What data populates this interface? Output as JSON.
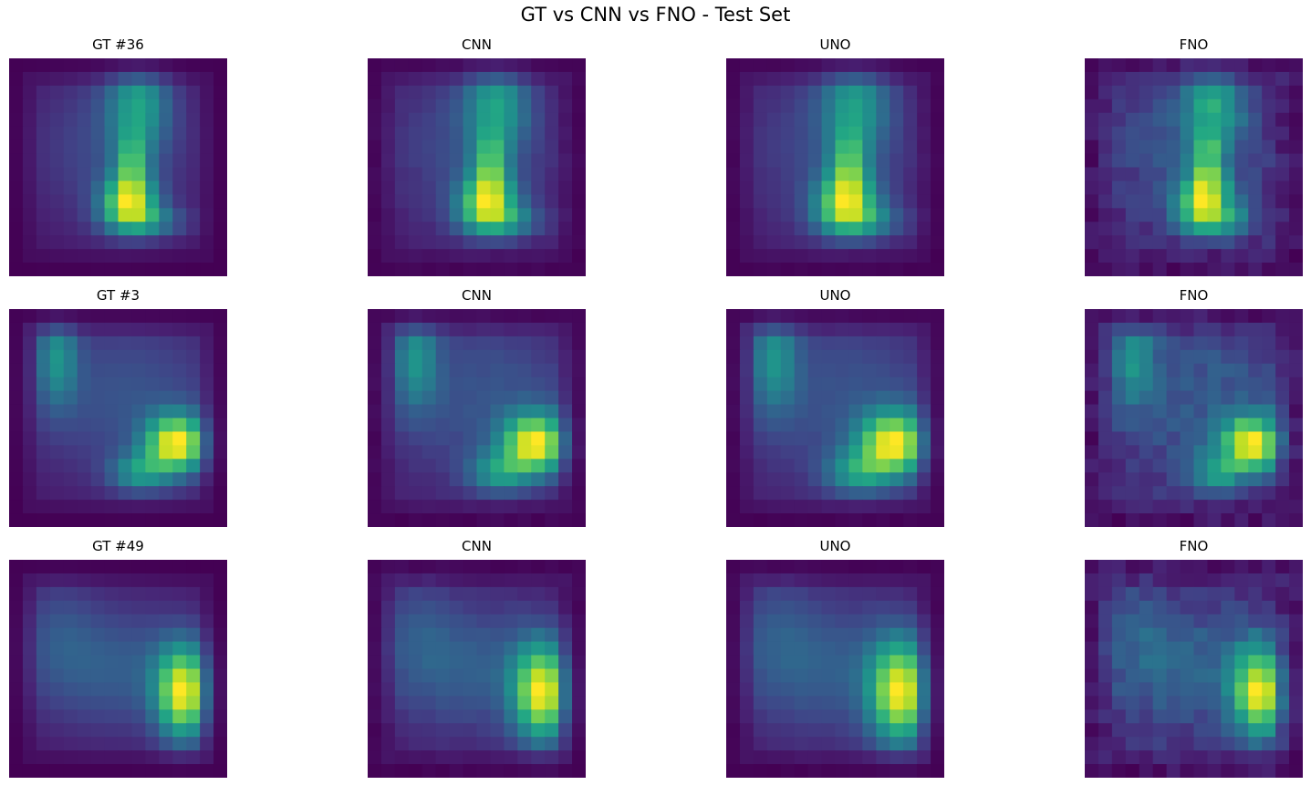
{
  "figure": {
    "title": "GT vs CNN vs FNO - Test Set"
  },
  "chart_data": [
    {
      "type": "heatmap",
      "colormap": "viridis",
      "axes": "off",
      "grid": false,
      "rows": [
        {
          "panels": [
            {
              "title": "GT #36",
              "kind": "GT",
              "sample": 36
            },
            {
              "title": "CNN",
              "kind": "CNN",
              "sample": 36
            },
            {
              "title": "UNO",
              "kind": "UNO",
              "sample": 36
            },
            {
              "title": "FNO",
              "kind": "FNO",
              "sample": 36
            }
          ]
        },
        {
          "panels": [
            {
              "title": "GT #3",
              "kind": "GT",
              "sample": 3
            },
            {
              "title": "CNN",
              "kind": "CNN",
              "sample": 3
            },
            {
              "title": "UNO",
              "kind": "UNO",
              "sample": 3
            },
            {
              "title": "FNO",
              "kind": "FNO",
              "sample": 3
            }
          ]
        },
        {
          "panels": [
            {
              "title": "GT #49",
              "kind": "GT",
              "sample": 49
            },
            {
              "title": "CNN",
              "kind": "CNN",
              "sample": 49
            },
            {
              "title": "UNO",
              "kind": "UNO",
              "sample": 49
            },
            {
              "title": "FNO",
              "kind": "FNO",
              "sample": 49
            }
          ]
        }
      ]
    }
  ]
}
